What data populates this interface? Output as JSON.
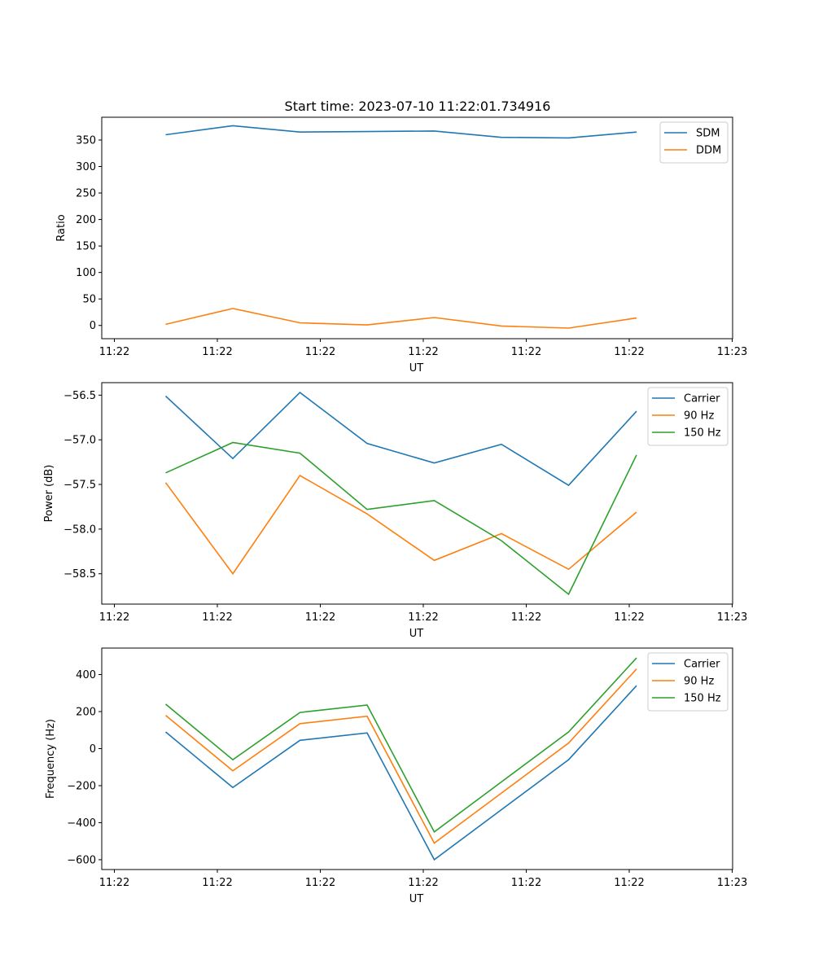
{
  "title": "Start time: 2023-07-10 11:22:01.734916",
  "chart_data": [
    {
      "type": "line",
      "title": "Start time: 2023-07-10 11:22:01.734916",
      "xlabel": "UT",
      "ylabel": "Ratio",
      "x_tick_labels": [
        "11:22",
        "11:22",
        "11:22",
        "11:22",
        "11:22",
        "11:22",
        "11:22",
        "11:23"
      ],
      "y_ticks": [
        0,
        50,
        100,
        150,
        200,
        250,
        300,
        350
      ],
      "ylim": [
        -25,
        393
      ],
      "legend_position": "top-right",
      "series": [
        {
          "name": "SDM",
          "color": "#1f77b4",
          "values": [
            360,
            377,
            365,
            366,
            367,
            355,
            354,
            365
          ]
        },
        {
          "name": "DDM",
          "color": "#ff7f0e",
          "values": [
            2,
            32,
            5,
            1,
            15,
            -1,
            -5,
            14
          ]
        }
      ]
    },
    {
      "type": "line",
      "title": "",
      "xlabel": "UT",
      "ylabel": "Power (dB)",
      "x_tick_labels": [
        "11:22",
        "11:22",
        "11:22",
        "11:22",
        "11:22",
        "11:22",
        "11:22",
        "11:23"
      ],
      "y_ticks": [
        -58.5,
        -58.0,
        -57.5,
        -57.0,
        -56.5
      ],
      "y_tick_labels": [
        "−58.5",
        "−58.0",
        "−57.5",
        "−57.0",
        "−56.5"
      ],
      "ylim": [
        -58.84,
        -56.36
      ],
      "legend_position": "top-right",
      "series": [
        {
          "name": "Carrier",
          "color": "#1f77b4",
          "values": [
            -56.51,
            -57.21,
            -56.47,
            -57.04,
            -57.26,
            -57.05,
            -57.51,
            -56.68
          ]
        },
        {
          "name": "90 Hz",
          "color": "#ff7f0e",
          "values": [
            -57.48,
            -58.5,
            -57.4,
            -57.83,
            -58.35,
            -58.05,
            -58.45,
            -57.81
          ]
        },
        {
          "name": "150 Hz",
          "color": "#2ca02c",
          "values": [
            -57.37,
            -57.03,
            -57.15,
            -57.78,
            -57.68,
            -58.13,
            -58.73,
            -57.17
          ]
        }
      ]
    },
    {
      "type": "line",
      "title": "",
      "xlabel": "UT",
      "ylabel": "Frequency (Hz)",
      "x_tick_labels": [
        "11:22",
        "11:22",
        "11:22",
        "11:22",
        "11:22",
        "11:22",
        "11:22",
        "11:23"
      ],
      "y_ticks": [
        -600,
        -400,
        -200,
        0,
        200,
        400
      ],
      "y_tick_labels": [
        "−600",
        "−400",
        "−200",
        "0",
        "200",
        "400"
      ],
      "ylim": [
        -653,
        543
      ],
      "legend_position": "top-right",
      "series": [
        {
          "name": "Carrier",
          "color": "#1f77b4",
          "values": [
            90,
            -210,
            45,
            85,
            -600,
            -330,
            -60,
            340
          ]
        },
        {
          "name": "90 Hz",
          "color": "#ff7f0e",
          "values": [
            180,
            -120,
            135,
            175,
            -510,
            -240,
            30,
            430
          ]
        },
        {
          "name": "150 Hz",
          "color": "#2ca02c",
          "values": [
            240,
            -60,
            195,
            235,
            -450,
            -180,
            90,
            490
          ]
        }
      ]
    }
  ]
}
